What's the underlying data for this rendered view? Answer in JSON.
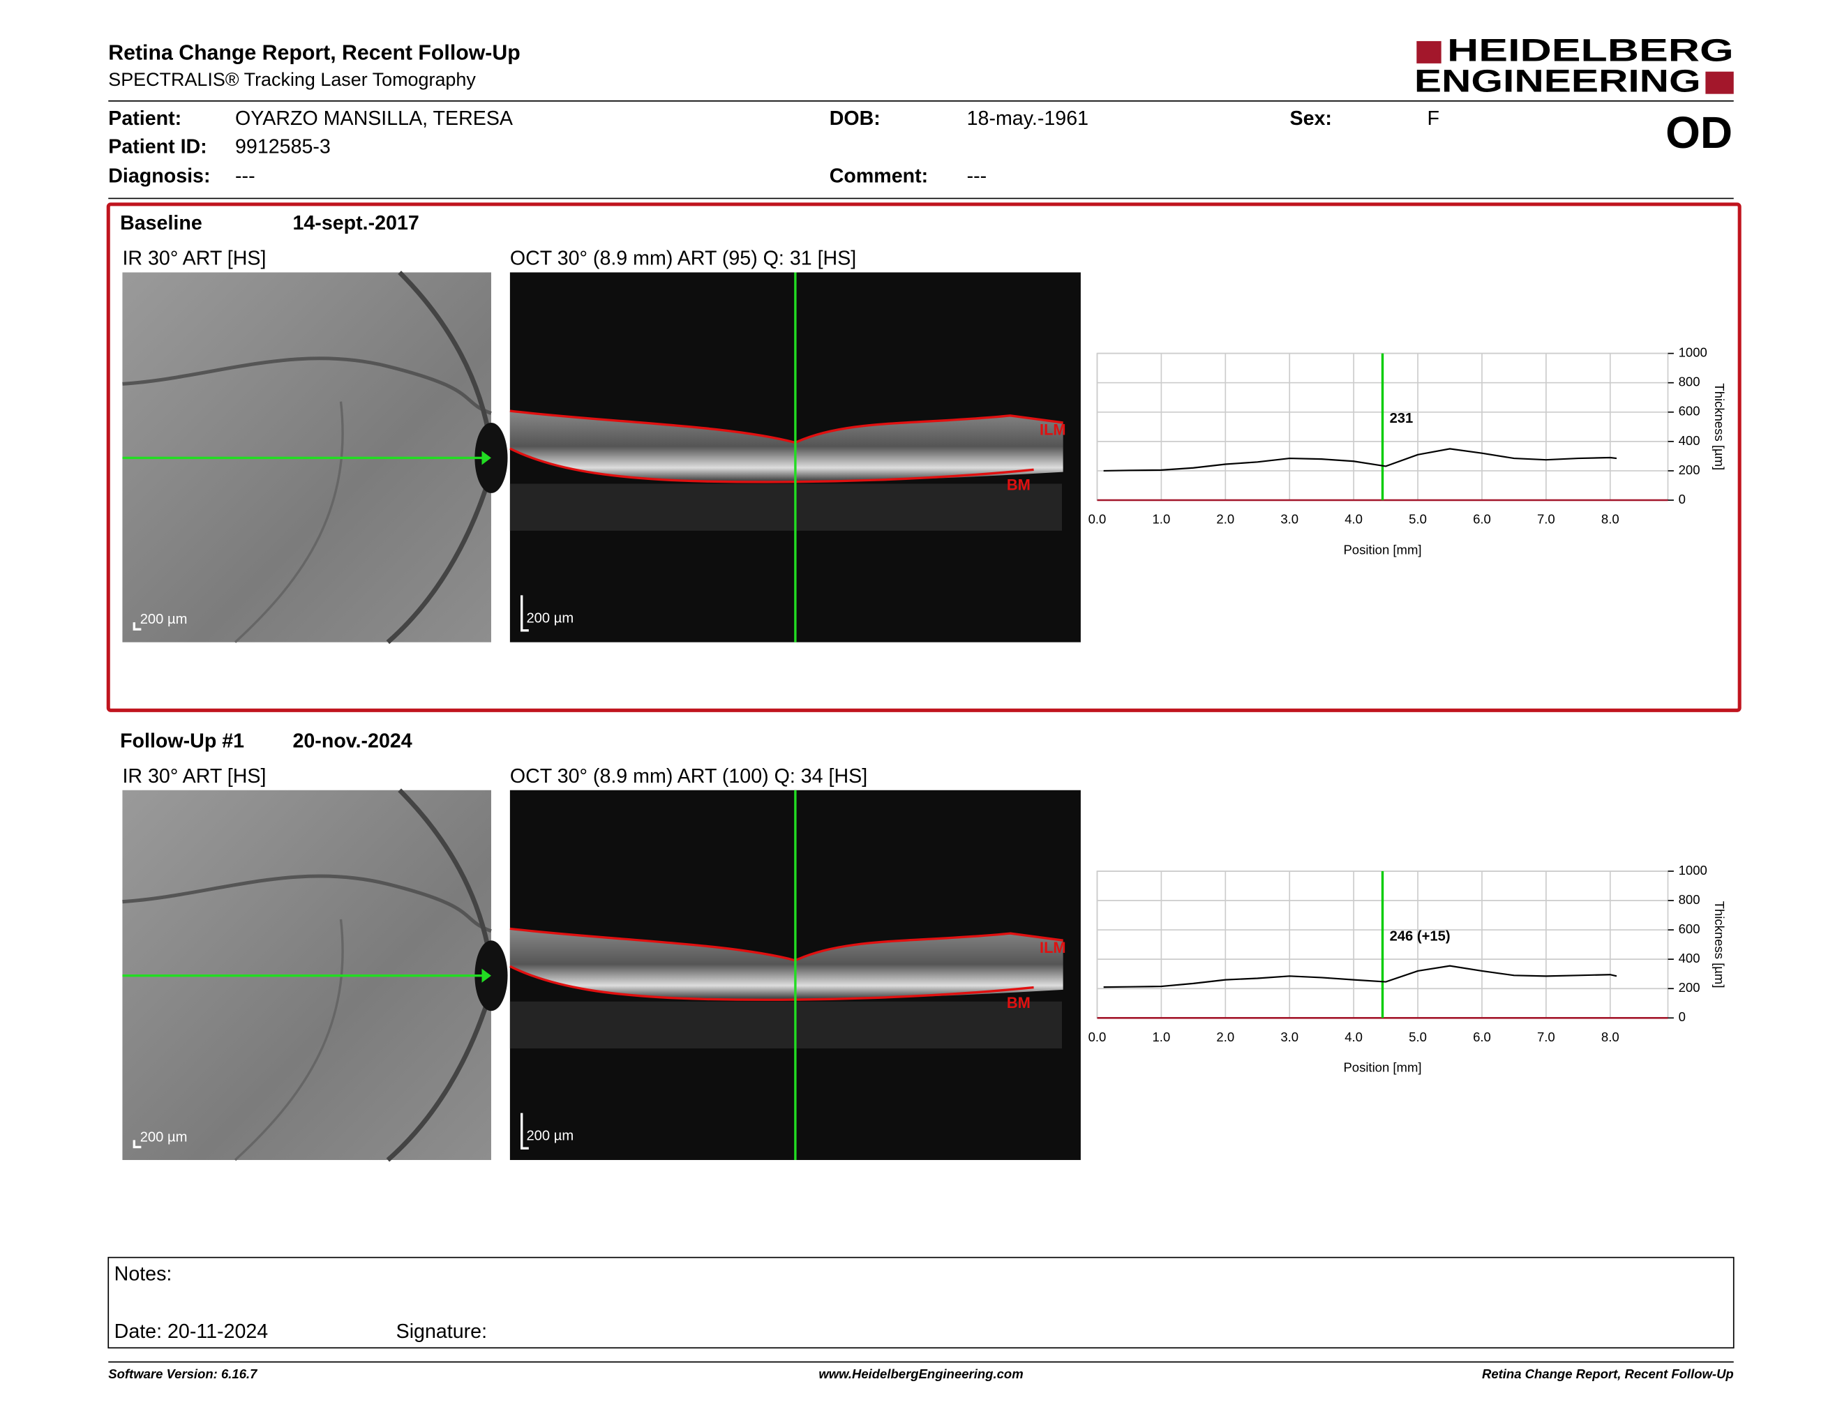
{
  "header": {
    "title": "Retina Change Report, Recent Follow-Up",
    "subtitle": "SPECTRALIS® Tracking Laser Tomography",
    "brand": [
      "HEIDELBERG",
      "ENGINEERING"
    ],
    "eye": "OD"
  },
  "patient": [
    {
      "label": "Patient:",
      "value": "OYARZO MANSILLA, TERESA"
    },
    {
      "label": "DOB:",
      "value": "18-may.-1961"
    },
    {
      "label": "Sex:",
      "value": "F"
    },
    {
      "label": "Patient ID:",
      "value": "9912585-3"
    },
    {
      "label": "Diagnosis:",
      "value": "---"
    },
    {
      "label": "Comment:",
      "value": "---"
    }
  ],
  "exams": [
    {
      "label": "Baseline",
      "date": "14-sept.-2017",
      "ir_title": "IR 30° ART [HS]",
      "oct_title": "OCT 30° (8.9 mm) ART (95) Q: 31 [HS]",
      "ir_scale": "200 µm",
      "oct_scale": "200 µm",
      "layers": [
        "ILM",
        "BM"
      ],
      "chart": {
        "type": "line",
        "xlabel": "Position [mm]",
        "ylabel": "Thickness [µm]",
        "xlim": [
          0,
          8.9
        ],
        "ylim": [
          0,
          1000
        ],
        "yticks": [
          0,
          200,
          400,
          600,
          800,
          1000
        ],
        "xticks": [
          {
            "value": 0,
            "label": "0.0"
          },
          {
            "value": 1,
            "label": "1.0"
          },
          {
            "value": 2,
            "label": "2.0"
          },
          {
            "value": 3,
            "label": "3.0"
          },
          {
            "value": 4,
            "label": "4.0"
          },
          {
            "value": 5,
            "label": "5.0"
          },
          {
            "value": 6,
            "label": "6.0"
          },
          {
            "value": 7,
            "label": "7.0"
          },
          {
            "value": 8,
            "label": "8.0"
          }
        ],
        "grid": true,
        "color": "#000000",
        "marker": {
          "x": 4.45,
          "label": "231",
          "color": "#00cc00"
        },
        "x": [
          0.1,
          0.5,
          1.0,
          1.5,
          2.0,
          2.5,
          3.0,
          3.5,
          4.0,
          4.5,
          5.0,
          5.5,
          6.0,
          6.5,
          7.0,
          7.5,
          8.0,
          8.1
        ],
        "values": [
          200,
          203,
          205,
          220,
          245,
          260,
          285,
          280,
          265,
          231,
          310,
          350,
          320,
          285,
          275,
          285,
          290,
          285
        ]
      }
    },
    {
      "label": "Follow-Up #1",
      "date": "20-nov.-2024",
      "ir_title": "IR 30° ART [HS]",
      "oct_title": "OCT 30° (8.9 mm) ART (100) Q: 34 [HS]",
      "ir_scale": "200 µm",
      "oct_scale": "200 µm",
      "layers": [
        "ILM",
        "BM"
      ],
      "chart": {
        "type": "line",
        "xlabel": "Position [mm]",
        "ylabel": "Thickness [µm]",
        "xlim": [
          0,
          8.9
        ],
        "ylim": [
          0,
          1000
        ],
        "yticks": [
          0,
          200,
          400,
          600,
          800,
          1000
        ],
        "xticks": [
          {
            "value": 0,
            "label": "0.0"
          },
          {
            "value": 1,
            "label": "1.0"
          },
          {
            "value": 2,
            "label": "2.0"
          },
          {
            "value": 3,
            "label": "3.0"
          },
          {
            "value": 4,
            "label": "4.0"
          },
          {
            "value": 5,
            "label": "5.0"
          },
          {
            "value": 6,
            "label": "6.0"
          },
          {
            "value": 7,
            "label": "7.0"
          },
          {
            "value": 8,
            "label": "8.0"
          }
        ],
        "grid": true,
        "color": "#000000",
        "marker": {
          "x": 4.45,
          "label": "246 (+15)",
          "color": "#00cc00"
        },
        "x": [
          0.1,
          0.5,
          1.0,
          1.5,
          2.0,
          2.5,
          3.0,
          3.5,
          4.0,
          4.5,
          5.0,
          5.5,
          6.0,
          6.5,
          7.0,
          7.5,
          8.0,
          8.1
        ],
        "values": [
          210,
          212,
          215,
          235,
          260,
          270,
          285,
          275,
          260,
          246,
          320,
          355,
          320,
          290,
          285,
          290,
          295,
          285
        ]
      }
    }
  ],
  "notes": {
    "notes": "Notes:",
    "date": "Date: 20-11-2024",
    "signature": "Signature:"
  },
  "footer": {
    "left": "Software Version: 6.16.7",
    "center": "www.HeidelbergEngineering.com",
    "right": "Retina Change Report, Recent Follow-Up"
  }
}
